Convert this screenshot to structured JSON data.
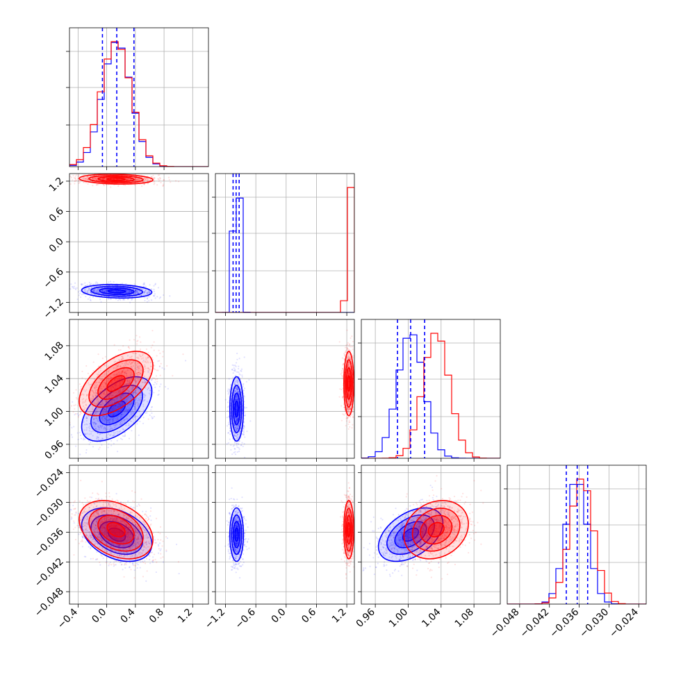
{
  "chart_data": {
    "type": "scatter",
    "subtype": "corner-plot",
    "title": "",
    "parameters": 4,
    "grid": true,
    "legend": "none",
    "colors": {
      "blue": "#0000ff",
      "red": "#ff0000"
    },
    "series": [
      {
        "color": "blue",
        "mean": [
          0.14,
          -0.98,
          1.003,
          -0.0365
        ],
        "std": [
          0.2,
          0.055,
          0.016,
          0.0022
        ],
        "corr": [
          [
            1,
            -0.15,
            0.55,
            -0.35
          ],
          [
            -0.15,
            1,
            0,
            0
          ],
          [
            0.55,
            0,
            1,
            0.45
          ],
          [
            -0.35,
            0,
            0.45,
            1
          ]
        ]
      },
      {
        "color": "red",
        "mean": [
          0.13,
          1.24,
          1.034,
          -0.0355
        ],
        "std": [
          0.21,
          0.04,
          0.016,
          0.0024
        ],
        "corr": [
          [
            1,
            -0.15,
            0.55,
            -0.35
          ],
          [
            -0.15,
            1,
            0,
            0
          ],
          [
            0.55,
            0,
            1,
            0.2
          ],
          [
            -0.35,
            0,
            0.2,
            1
          ]
        ]
      }
    ],
    "quantile_lines_blue": [
      [
        -0.06,
        0.14,
        0.38
      ],
      [
        -1.05,
        -0.99,
        -0.93
      ],
      [
        0.987,
        1.003,
        1.02
      ],
      [
        -0.0386,
        -0.0364,
        -0.0343
      ]
    ],
    "axis_ranges": [
      [
        -0.52,
        1.42
      ],
      [
        -1.4,
        1.35
      ],
      [
        0.943,
        1.112
      ],
      [
        -0.0505,
        -0.0225
      ]
    ],
    "ticks": [
      [
        "−0.4",
        "0.0",
        "0.4",
        "0.8",
        "1.2"
      ],
      [
        "−1.2",
        "−0.6",
        "0.0",
        "0.6",
        "1.2"
      ],
      [
        "0.96",
        "1.00",
        "1.04",
        "1.08"
      ],
      [
        "−0.048",
        "−0.042",
        "−0.036",
        "−0.030",
        "−0.024"
      ]
    ],
    "tick_values": [
      [
        -0.4,
        0.0,
        0.4,
        0.8,
        1.2
      ],
      [
        -1.2,
        -0.6,
        0.0,
        0.6,
        1.2
      ],
      [
        0.96,
        1.0,
        1.04,
        1.08
      ],
      [
        -0.048,
        -0.042,
        -0.036,
        -0.03,
        -0.024
      ]
    ]
  }
}
